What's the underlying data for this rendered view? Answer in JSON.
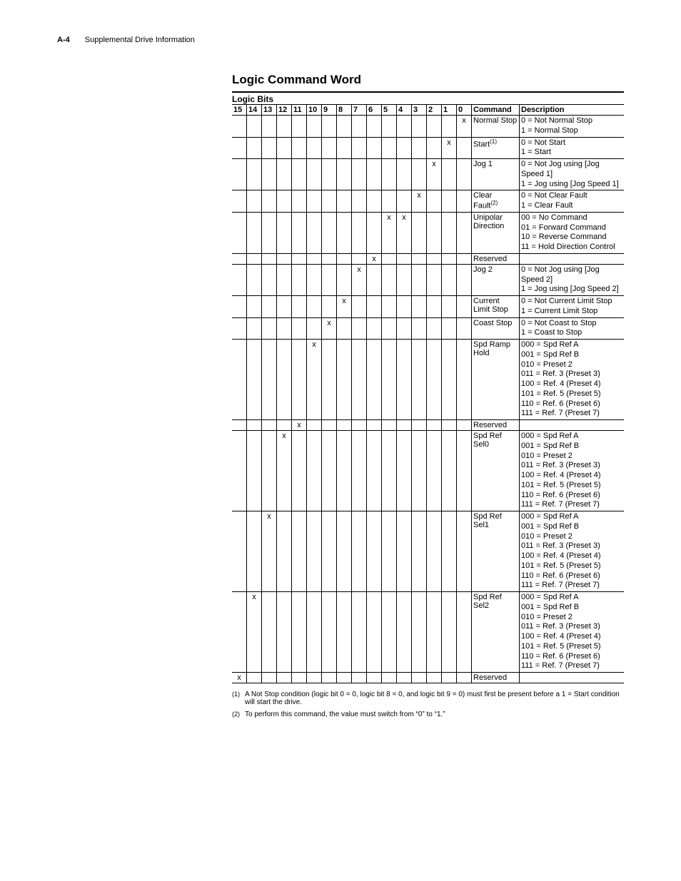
{
  "header": {
    "page_number": "A-4",
    "chapter_title": "Supplemental Drive Information"
  },
  "section_title": "Logic Command Word",
  "table": {
    "logic_bits_label": "Logic Bits",
    "bit_headers": [
      "15",
      "14",
      "13",
      "12",
      "11",
      "10",
      "9",
      "8",
      "7",
      "6",
      "5",
      "4",
      "3",
      "2",
      "1",
      "0"
    ],
    "col_command": "Command",
    "col_description": "Description",
    "rows": [
      {
        "bits": {
          "0": "x"
        },
        "command": "Normal Stop",
        "description": "0 = Not Normal Stop\n1 = Normal Stop"
      },
      {
        "bits": {
          "1": "x"
        },
        "command_html": "Start<sup>(1)</sup>",
        "description": "0 = Not Start\n1 = Start"
      },
      {
        "bits": {
          "2": "x"
        },
        "command": "Jog 1",
        "description": "0 = Not Jog using [Jog Speed 1]\n1 = Jog using [Jog Speed 1]"
      },
      {
        "bits": {
          "3": "x"
        },
        "command_html": "Clear Fault<sup>(2)</sup>",
        "description": "0 = Not Clear Fault\n1 = Clear Fault"
      },
      {
        "bits": {
          "4": "x",
          "5": "x"
        },
        "command": "Unipolar Direction",
        "description": "00 = No Command\n01 = Forward Command\n10 = Reverse Command\n11 = Hold Direction Control"
      },
      {
        "bits": {
          "6": "x"
        },
        "command": "Reserved",
        "description": ""
      },
      {
        "bits": {
          "7": "x"
        },
        "command": "Jog 2",
        "description": "0 = Not Jog using [Jog Speed 2]\n1 = Jog using [Jog Speed 2]"
      },
      {
        "bits": {
          "8": "x"
        },
        "command": "Current Limit Stop",
        "description": "0 = Not Current Limit Stop\n1 = Current Limit Stop"
      },
      {
        "bits": {
          "9": "x"
        },
        "command": "Coast Stop",
        "description": "0 = Not Coast to Stop\n1 = Coast to Stop"
      },
      {
        "bits": {
          "10": "x"
        },
        "command": "Spd Ramp Hold",
        "description": "000 = Spd Ref A\n001 = Spd Ref B\n010 = Preset 2\n011 = Ref. 3 (Preset 3)\n100 = Ref. 4 (Preset 4)\n101 = Ref. 5 (Preset 5)\n110 = Ref. 6 (Preset 6)\n111 = Ref. 7 (Preset 7)"
      },
      {
        "bits": {
          "11": "x"
        },
        "command": "Reserved",
        "description": ""
      },
      {
        "bits": {
          "12": "x"
        },
        "command": "Spd Ref Sel0",
        "description": "000 = Spd Ref A\n001 = Spd Ref B\n010 = Preset 2\n011 = Ref. 3 (Preset 3)\n100 = Ref. 4 (Preset 4)\n101 = Ref. 5 (Preset 5)\n110 = Ref. 6 (Preset 6)\n111 = Ref. 7 (Preset 7)"
      },
      {
        "bits": {
          "13": "x"
        },
        "command": "Spd Ref Sel1",
        "description": "000 = Spd Ref A\n001 = Spd Ref B\n010 = Preset 2\n011 = Ref. 3 (Preset 3)\n100 = Ref. 4 (Preset 4)\n101 = Ref. 5 (Preset 5)\n110 = Ref. 6 (Preset 6)\n111 = Ref. 7 (Preset 7)"
      },
      {
        "bits": {
          "14": "x"
        },
        "command": "Spd Ref Sel2",
        "description": "000 = Spd Ref A\n001 = Spd Ref B\n010 = Preset 2\n011 = Ref. 3 (Preset 3)\n100 = Ref. 4 (Preset 4)\n101 = Ref. 5 (Preset 5)\n110 = Ref. 6 (Preset 6)\n111 = Ref. 7 (Preset 7)"
      },
      {
        "bits": {
          "15": "x"
        },
        "command": "Reserved",
        "description": ""
      }
    ]
  },
  "footnotes": [
    {
      "mark": "(1)",
      "text": "A Not Stop condition (logic bit 0 = 0, logic bit 8 = 0, and logic bit 9 = 0) must first be present before a 1 = Start condition will start the drive."
    },
    {
      "mark": "(2)",
      "text": "To perform this command, the value must switch from “0” to “1.”"
    }
  ]
}
